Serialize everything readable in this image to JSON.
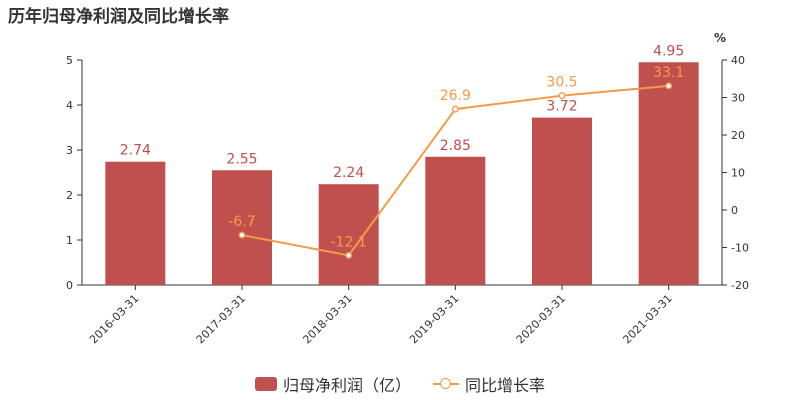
{
  "title": "历年归母净利润及同比增长率",
  "colors": {
    "bar": "#c0504d",
    "line": "#f59a4a",
    "axis": "#333333"
  },
  "chart_data": {
    "type": "bar",
    "categories": [
      "2016-03-31",
      "2017-03-31",
      "2018-03-31",
      "2019-03-31",
      "2020-03-31",
      "2021-03-31"
    ],
    "series": [
      {
        "name": "归母净利润（亿）",
        "type": "bar",
        "axis": "left",
        "values": [
          2.74,
          2.55,
          2.24,
          2.85,
          3.72,
          4.95
        ],
        "labels": [
          "2.74",
          "2.55",
          "2.24",
          "2.85",
          "3.72",
          "4.95"
        ]
      },
      {
        "name": "同比增长率",
        "type": "line",
        "axis": "right",
        "values": [
          null,
          -6.7,
          -12.1,
          26.9,
          30.5,
          33.1
        ],
        "labels": [
          "",
          "-6.7",
          "-12.1",
          "26.9",
          "30.5",
          "33.1"
        ]
      }
    ],
    "y_left": {
      "min": 0,
      "max": 5,
      "ticks": [
        "0",
        "1",
        "2",
        "3",
        "4",
        "5"
      ]
    },
    "y_right": {
      "min": -20,
      "max": 40,
      "unit": "%",
      "ticks": [
        "-20",
        "-10",
        "0",
        "10",
        "20",
        "30",
        "40"
      ]
    },
    "grid": false,
    "legend_position": "bottom"
  }
}
